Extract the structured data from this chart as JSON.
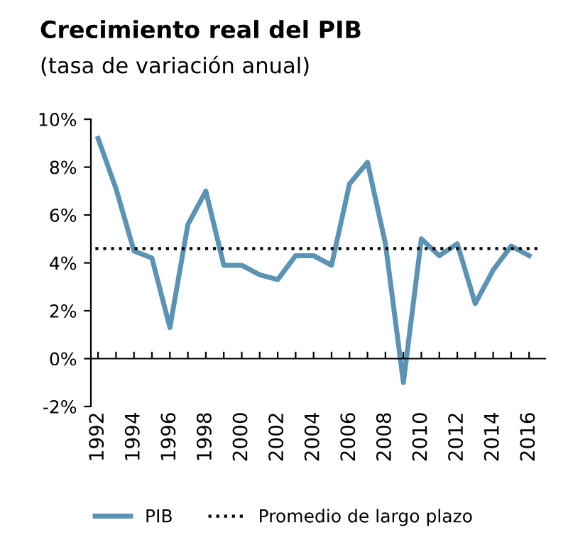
{
  "chart_data": {
    "type": "line",
    "title": "Crecimiento real del PIB",
    "subtitle": "(tasa de variación anual)",
    "x": [
      1992,
      1993,
      1994,
      1995,
      1996,
      1997,
      1998,
      1999,
      2000,
      2001,
      2002,
      2003,
      2004,
      2005,
      2006,
      2007,
      2008,
      2009,
      2010,
      2011,
      2012,
      2013,
      2014,
      2015,
      2016
    ],
    "series": [
      {
        "name": "PIB",
        "color": "#5b93b5",
        "values": [
          9.2,
          7.1,
          4.5,
          4.2,
          1.3,
          5.6,
          7.0,
          3.9,
          3.9,
          3.5,
          3.3,
          4.3,
          4.3,
          3.9,
          7.3,
          8.2,
          4.8,
          -1.0,
          5.0,
          4.3,
          4.8,
          2.3,
          3.7,
          4.7,
          4.3
        ]
      }
    ],
    "ref_lines": [
      {
        "axis": "y",
        "value": 4.6,
        "label": "Promedio de largo plazo",
        "color": "#000000",
        "line_style": "dotted"
      }
    ],
    "xlim": [
      1991.6,
      2016.9
    ],
    "xticks": [
      1992,
      {
        "value": 1993,
        "label": null
      },
      1994,
      {
        "value": 1995,
        "label": null
      },
      1996,
      {
        "value": 1997,
        "label": null
      },
      1998,
      {
        "value": 1999,
        "label": null
      },
      2000,
      {
        "value": 2001,
        "label": null
      },
      2002,
      {
        "value": 2003,
        "label": null
      },
      2004,
      {
        "value": 2005,
        "label": null
      },
      2006,
      {
        "value": 2007,
        "label": null
      },
      2008,
      {
        "value": 2009,
        "label": null
      },
      2010,
      {
        "value": 2011,
        "label": null
      },
      2012,
      {
        "value": 2013,
        "label": null
      },
      2014,
      {
        "value": 2015,
        "label": null
      },
      2016
    ],
    "ylim": [
      -2,
      10
    ],
    "yticks": [
      {
        "value": -2,
        "label": "-2%"
      },
      {
        "value": 0,
        "label": "0%"
      },
      {
        "value": 2,
        "label": "2%"
      },
      {
        "value": 4,
        "label": "4%"
      },
      {
        "value": 6,
        "label": "6%"
      },
      {
        "value": 8,
        "label": "8%"
      },
      {
        "value": 10,
        "label": "10%"
      }
    ],
    "legend": "bottom",
    "marker": "none",
    "line_style": "solid"
  }
}
